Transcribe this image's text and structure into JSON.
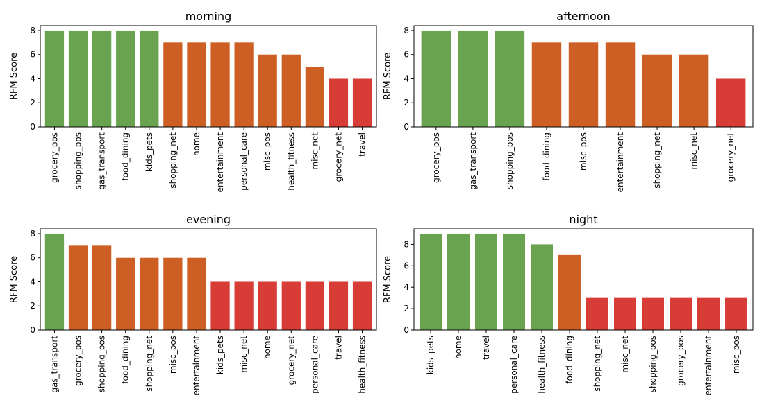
{
  "colors": {
    "high": "#6aa350",
    "mid": "#cd5f24",
    "low": "#d73c37"
  },
  "chart_data": [
    {
      "type": "bar",
      "title": "morning",
      "xlabel": "",
      "ylabel": "RFM Score",
      "ylim": [
        0,
        8.4
      ],
      "yticks": [
        0,
        2,
        4,
        6,
        8
      ],
      "categories": [
        "grocery_pos",
        "shopping_pos",
        "gas_transport",
        "food_dining",
        "kids_pets",
        "shopping_net",
        "home",
        "entertainment",
        "personal_care",
        "misc_pos",
        "health_fitness",
        "misc_net",
        "grocery_net",
        "travel"
      ],
      "values": [
        8,
        8,
        8,
        8,
        8,
        7,
        7,
        7,
        7,
        6,
        6,
        5,
        4,
        4
      ],
      "bar_colors": [
        "high",
        "high",
        "high",
        "high",
        "high",
        "mid",
        "mid",
        "mid",
        "mid",
        "mid",
        "mid",
        "mid",
        "low",
        "low"
      ]
    },
    {
      "type": "bar",
      "title": "afternoon",
      "xlabel": "",
      "ylabel": "RFM Score",
      "ylim": [
        0,
        8.4
      ],
      "yticks": [
        0,
        2,
        4,
        6,
        8
      ],
      "categories": [
        "grocery_pos",
        "gas_transport",
        "shopping_pos",
        "food_dining",
        "misc_pos",
        "entertainment",
        "shopping_net",
        "misc_net",
        "grocery_net"
      ],
      "values": [
        8,
        8,
        8,
        7,
        7,
        7,
        6,
        6,
        4
      ],
      "bar_colors": [
        "high",
        "high",
        "high",
        "mid",
        "mid",
        "mid",
        "mid",
        "mid",
        "low"
      ]
    },
    {
      "type": "bar",
      "title": "evening",
      "xlabel": "",
      "ylabel": "RFM Score",
      "ylim": [
        0,
        8.4
      ],
      "yticks": [
        0,
        2,
        4,
        6,
        8
      ],
      "categories": [
        "gas_transport",
        "grocery_pos",
        "shopping_pos",
        "food_dining",
        "shopping_net",
        "misc_pos",
        "entertainment",
        "kids_pets",
        "misc_net",
        "home",
        "grocery_net",
        "personal_care",
        "travel",
        "health_fitness"
      ],
      "values": [
        8,
        7,
        7,
        6,
        6,
        6,
        6,
        4,
        4,
        4,
        4,
        4,
        4,
        4
      ],
      "bar_colors": [
        "high",
        "mid",
        "mid",
        "mid",
        "mid",
        "mid",
        "mid",
        "low",
        "low",
        "low",
        "low",
        "low",
        "low",
        "low"
      ]
    },
    {
      "type": "bar",
      "title": "night",
      "xlabel": "",
      "ylabel": "RFM Score",
      "ylim": [
        0,
        9.45
      ],
      "yticks": [
        0,
        2,
        4,
        6,
        8
      ],
      "categories": [
        "kids_pets",
        "home",
        "travel",
        "personal_care",
        "health_fitness",
        "food_dining",
        "shopping_net",
        "misc_net",
        "shopping_pos",
        "grocery_pos",
        "entertainment",
        "misc_pos"
      ],
      "values": [
        9,
        9,
        9,
        9,
        8,
        7,
        3,
        3,
        3,
        3,
        3,
        3
      ],
      "bar_colors": [
        "high",
        "high",
        "high",
        "high",
        "high",
        "mid",
        "low",
        "low",
        "low",
        "low",
        "low",
        "low"
      ]
    }
  ]
}
